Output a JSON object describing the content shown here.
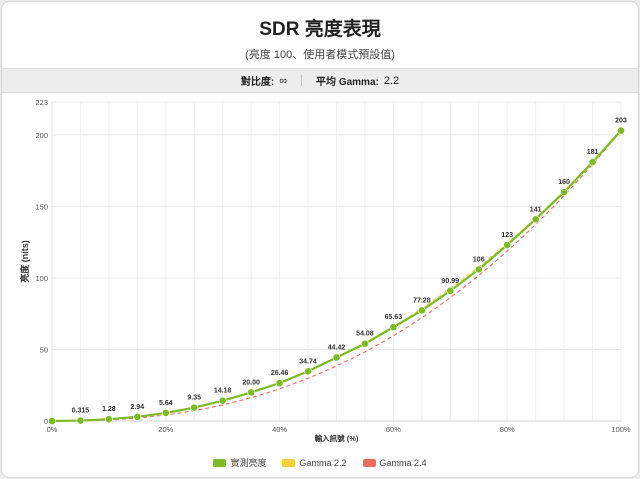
{
  "header": {
    "title": "SDR 亮度表現",
    "subtitle": "(亮度 100、使用者模式預設值)"
  },
  "stats": {
    "contrast_label": "對比度:",
    "contrast_value": "∞",
    "gamma_label": "平均 Gamma:",
    "gamma_value": "2.2"
  },
  "chart_data": {
    "type": "line",
    "xlabel": "輸入訊號 (%)",
    "ylabel": "亮度 (nits)",
    "xlim": [
      0,
      100
    ],
    "ylim": [
      0,
      223
    ],
    "x_ticks": [
      "0%",
      "20%",
      "40%",
      "60%",
      "80%",
      "100%"
    ],
    "y_ticks": [
      0,
      50,
      100,
      150,
      200,
      223
    ],
    "grid": true,
    "legend_position": "bottom-center",
    "x": [
      0,
      5,
      10,
      15,
      20,
      25,
      30,
      35,
      40,
      45,
      50,
      55,
      60,
      65,
      70,
      75,
      80,
      85,
      90,
      95,
      100
    ],
    "series": [
      {
        "name": "實測亮度",
        "color": "#7db928",
        "style": "solid-with-markers",
        "values": [
          0,
          0.315,
          1.28,
          2.94,
          5.64,
          9.35,
          14.18,
          20.0,
          26.46,
          34.74,
          44.42,
          54.08,
          65.63,
          77.28,
          90.99,
          106,
          123,
          141,
          160,
          181,
          203
        ],
        "labels": [
          "0",
          "0.315",
          "1.28",
          "2.94",
          "5.64",
          "9.35",
          "14.18",
          "20.00",
          "26.46",
          "34.74",
          "44.42",
          "54.08",
          "65.63",
          "77.28",
          "90.99",
          "106",
          "123",
          "141",
          "160",
          "181",
          "203"
        ]
      },
      {
        "name": "Gamma 2.2",
        "color": "#f2d13a",
        "style": "dashed",
        "gamma": 2.2,
        "peak": 203
      },
      {
        "name": "Gamma 2.4",
        "color": "#ef6b5e",
        "style": "dashed",
        "gamma": 2.4,
        "peak": 203
      }
    ]
  }
}
